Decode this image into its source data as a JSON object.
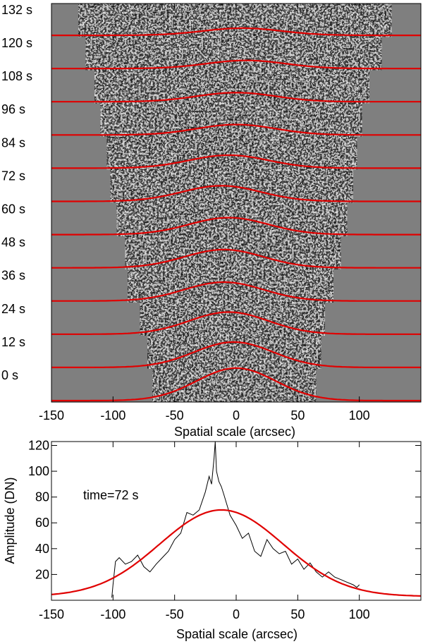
{
  "chart_data": [
    {
      "type": "heatmap",
      "title": "",
      "xlabel": "Spatial scale (arcsec)",
      "ylabel": "",
      "xlim": [
        -150,
        150
      ],
      "x_ticks": [
        -150,
        -100,
        -50,
        0,
        50,
        100
      ],
      "x_tick_labels": [
        "-150",
        "-100",
        "-50",
        "0",
        "50",
        "100"
      ],
      "row_labels": [
        "0 s",
        "12 s",
        "24 s",
        "36 s",
        "48 s",
        "60 s",
        "72 s",
        "84 s",
        "96 s",
        "108 s",
        "120 s",
        "132 s"
      ],
      "rows": [
        {
          "time": "0 s",
          "data_extent": [
            -68,
            65
          ],
          "gaussian_center": 0,
          "gaussian_peak": 1.0
        },
        {
          "time": "12 s",
          "data_extent": [
            -72,
            69
          ],
          "gaussian_center": -2,
          "gaussian_peak": 0.78
        },
        {
          "time": "24 s",
          "data_extent": [
            -78,
            72
          ],
          "gaussian_center": -6,
          "gaussian_peak": 0.68
        },
        {
          "time": "36 s",
          "data_extent": [
            -88,
            79
          ],
          "gaussian_center": -10,
          "gaussian_peak": 0.58
        },
        {
          "time": "48 s",
          "data_extent": [
            -90,
            85
          ],
          "gaussian_center": -10,
          "gaussian_peak": 0.56
        },
        {
          "time": "60 s",
          "data_extent": [
            -97,
            90
          ],
          "gaussian_center": -6,
          "gaussian_peak": 0.52
        },
        {
          "time": "72 s",
          "data_extent": [
            -102,
            95
          ],
          "gaussian_center": -12,
          "gaussian_peak": 0.48
        },
        {
          "time": "84 s",
          "data_extent": [
            -105,
            98
          ],
          "gaussian_center": -6,
          "gaussian_peak": 0.4
        },
        {
          "time": "96 s",
          "data_extent": [
            -110,
            102
          ],
          "gaussian_center": 0,
          "gaussian_peak": 0.32
        },
        {
          "time": "108 s",
          "data_extent": [
            -115,
            108
          ],
          "gaussian_center": 0,
          "gaussian_peak": 0.28
        },
        {
          "time": "120 s",
          "data_extent": [
            -122,
            118
          ],
          "gaussian_center": 8,
          "gaussian_peak": 0.25
        },
        {
          "time": "132 s",
          "data_extent": [
            -128,
            126
          ],
          "gaussian_center": 5,
          "gaussian_peak": 0.22
        }
      ],
      "colors": {
        "background": "#7f7f7f",
        "fit": "#e00000",
        "dark": "#000000",
        "light": "#ffffff"
      }
    },
    {
      "type": "line",
      "title": "",
      "xlabel": "Spatial scale (arcsec)",
      "ylabel": "Amplitude (DN)",
      "xlim": [
        -150,
        150
      ],
      "ylim": [
        0,
        123
      ],
      "x_ticks": [
        -150,
        -100,
        -50,
        0,
        50,
        100
      ],
      "x_tick_labels": [
        "-150",
        "-100",
        "-50",
        "0",
        "50",
        "100"
      ],
      "y_ticks": [
        20,
        40,
        60,
        80,
        100,
        120
      ],
      "y_tick_labels": [
        "20",
        "40",
        "60",
        "80",
        "100",
        "120"
      ],
      "annotation": "time=72 s",
      "series": [
        {
          "color": "#000000",
          "x": [
            -101,
            -100,
            -98,
            -95,
            -90,
            -85,
            -80,
            -75,
            -70,
            -65,
            -60,
            -55,
            -50,
            -45,
            -40,
            -35,
            -30,
            -25,
            -22,
            -20,
            -18,
            -17,
            -16,
            -14,
            -12,
            -10,
            -5,
            0,
            5,
            10,
            15,
            20,
            25,
            30,
            35,
            40,
            45,
            50,
            55,
            60,
            65,
            70,
            75,
            80,
            85,
            90,
            95,
            98,
            100
          ],
          "y": [
            2,
            12,
            30,
            33,
            28,
            30,
            35,
            26,
            22,
            28,
            33,
            38,
            47,
            52,
            68,
            66,
            70,
            84,
            96,
            90,
            110,
            123,
            100,
            92,
            88,
            82,
            66,
            58,
            48,
            52,
            38,
            34,
            47,
            40,
            36,
            38,
            28,
            32,
            24,
            29,
            22,
            18,
            22,
            18,
            16,
            14,
            12,
            10,
            12
          ]
        },
        {
          "color": "#e00000",
          "gaussian": {
            "amplitude": 67,
            "center": -12,
            "sigma": 50,
            "offset": 3
          }
        }
      ]
    }
  ]
}
